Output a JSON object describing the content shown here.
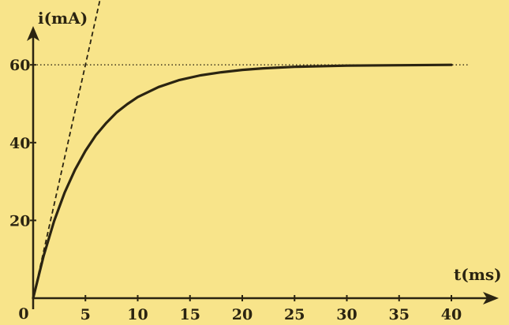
{
  "chart_data": {
    "type": "line",
    "title": "",
    "xlabel": "t(ms)",
    "ylabel": "i(mA)",
    "xlim": [
      0,
      40
    ],
    "ylim": [
      0,
      60
    ],
    "x_ticks": [
      0,
      5,
      10,
      15,
      20,
      25,
      30,
      35,
      40
    ],
    "y_ticks": [
      20,
      40,
      60
    ],
    "origin_label": "0",
    "grid": false,
    "series": [
      {
        "style": "solid",
        "x": [
          0,
          1,
          2,
          3,
          4,
          5,
          6,
          7,
          8,
          9,
          10,
          12,
          14,
          16,
          18,
          20,
          22,
          25,
          30,
          35,
          40
        ],
        "y": [
          0,
          10.9,
          19.8,
          27.1,
          33.0,
          37.9,
          41.9,
          45.1,
          47.8,
          49.9,
          51.7,
          54.3,
          56.1,
          57.3,
          58.1,
          58.7,
          59.1,
          59.5,
          59.8,
          59.9,
          60.0
        ]
      },
      {
        "style": "dashed",
        "x": [
          0,
          6.5
        ],
        "y": [
          0,
          78
        ]
      }
    ],
    "reference_lines": [
      {
        "orientation": "horizontal",
        "y": 60,
        "style": "dotted"
      }
    ],
    "colors": {
      "background": "#f8e48a",
      "curve": "#2b2411",
      "axes": "#2b2411"
    }
  }
}
